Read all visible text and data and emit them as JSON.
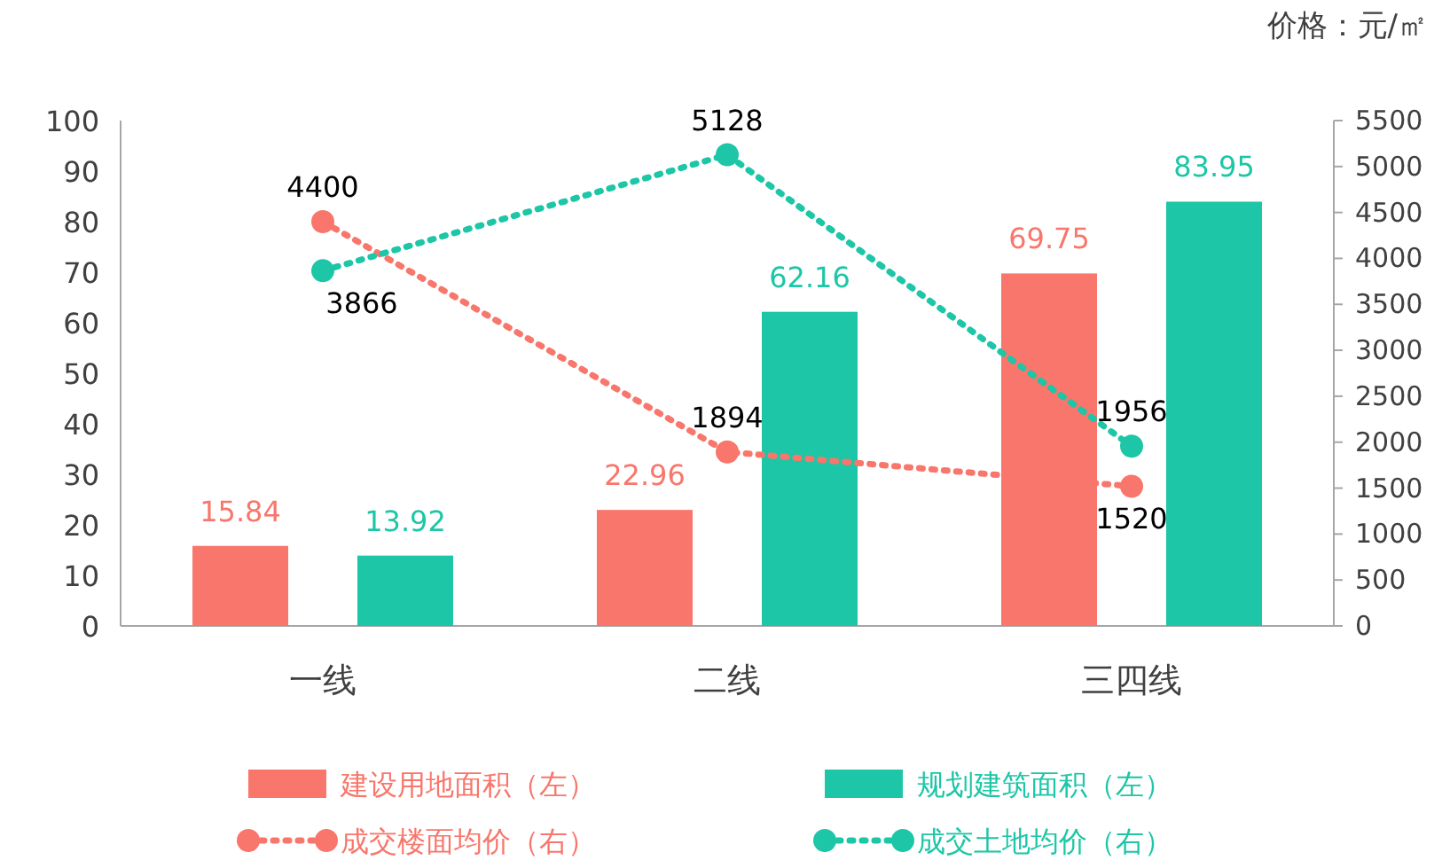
{
  "chart_data": {
    "type": "bar",
    "categories": [
      "一线",
      "二线",
      "三四线"
    ],
    "y2label": "价格：元/㎡",
    "series": [
      {
        "name": "建设用地面积（左）",
        "type": "bar",
        "color": "#f8766b",
        "values": [
          15.84,
          22.96,
          69.75
        ]
      },
      {
        "name": "规划建筑面积（左）",
        "type": "bar",
        "color": "#1cc6a6",
        "values": [
          13.92,
          62.16,
          83.95
        ]
      },
      {
        "name": "成交楼面均价（右）",
        "type": "line",
        "axis": "y2",
        "color": "#f8766b",
        "values": [
          4400,
          1894,
          1520
        ],
        "marker": "circle",
        "line_style": "dotted"
      },
      {
        "name": "成交土地均价（右）",
        "type": "line",
        "axis": "y2",
        "color": "#1cc6a6",
        "values": [
          3866,
          5128,
          1956
        ],
        "marker": "circle",
        "line_style": "dotted"
      }
    ],
    "ylim": [
      0,
      100
    ],
    "yticks": [
      0,
      10,
      20,
      30,
      40,
      50,
      60,
      70,
      80,
      90,
      100
    ],
    "y2lim": [
      0,
      5500
    ],
    "y2ticks": [
      0,
      500,
      1000,
      1500,
      2000,
      2500,
      3000,
      3500,
      4000,
      4500,
      5000,
      5500
    ],
    "data_labels": true,
    "grid": false,
    "legend": "bottom"
  }
}
